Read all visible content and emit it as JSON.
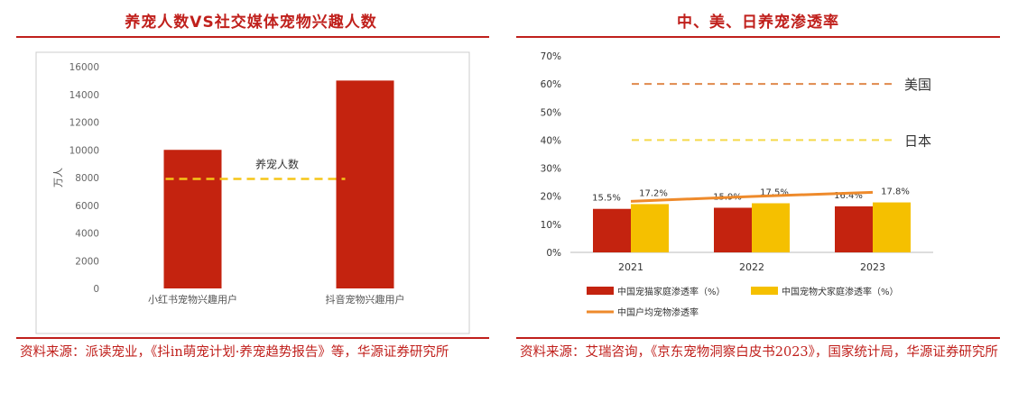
{
  "left": {
    "title": "养宠人数VS社交媒体宠物兴趣人数",
    "source": "资料来源：派读宠业，《抖in萌宠计划·养宠趋势报告》等，华源证券研究所",
    "chart_data": {
      "type": "bar",
      "categories": [
        "小红书宠物兴趣用户",
        "抖音宠物兴趣用户"
      ],
      "values": [
        10000,
        15000
      ],
      "ylabel": "万人",
      "ylim": [
        0,
        16000
      ],
      "yticks": [
        "0",
        "2000",
        "4000",
        "6000",
        "8000",
        "10000",
        "12000",
        "14000",
        "16000"
      ],
      "reference_line": {
        "label": "养宠人数",
        "value": 7900
      },
      "colors": {
        "bar": "#c4230f",
        "reference": "#f5c518"
      }
    }
  },
  "right": {
    "title": "中、美、日养宠渗透率",
    "source": "资料来源：艾瑞咨询，《京东宠物洞察白皮书2023》，国家统计局，华源证券研究所",
    "chart_data": {
      "type": "bar",
      "categories": [
        "2021",
        "2022",
        "2023"
      ],
      "ylim": [
        0,
        70
      ],
      "yticks": [
        "0%",
        "10%",
        "20%",
        "30%",
        "40%",
        "50%",
        "60%",
        "70%"
      ],
      "series": [
        {
          "name": "中国宠猫家庭渗透率（%）",
          "values": [
            15.5,
            15.9,
            16.4
          ],
          "labels": [
            "15.5%",
            "15.9%",
            "16.4%"
          ],
          "color": "#c4230f"
        },
        {
          "name": "中国宠物犬家庭渗透率（%）",
          "values": [
            17.2,
            17.5,
            17.8
          ],
          "labels": [
            "17.2%",
            "17.5%",
            "17.8%"
          ],
          "color": "#f5c000"
        }
      ],
      "line_series": {
        "name": "中国户均宠物渗透率",
        "values": [
          18.2,
          19.9,
          21.4
        ],
        "color": "#ee8a2b"
      },
      "reference_lines": [
        {
          "label": "美国",
          "value": 60,
          "color": "#e08a4c"
        },
        {
          "label": "日本",
          "value": 40,
          "color": "#f5d94a"
        }
      ]
    }
  }
}
